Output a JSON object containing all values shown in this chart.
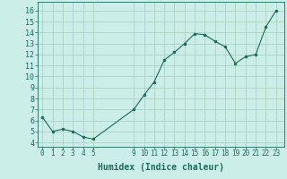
{
  "x": [
    0,
    1,
    2,
    3,
    4,
    5,
    9,
    10,
    11,
    12,
    13,
    14,
    15,
    16,
    17,
    18,
    19,
    20,
    21,
    22,
    23
  ],
  "y": [
    6.3,
    5.0,
    5.2,
    5.0,
    4.5,
    4.3,
    7.0,
    8.3,
    9.5,
    11.5,
    12.2,
    13.0,
    13.9,
    13.8,
    13.2,
    12.7,
    11.2,
    11.8,
    12.0,
    14.5,
    16.0
  ],
  "xlabel": "Humidex (Indice chaleur)",
  "xticks": [
    0,
    1,
    2,
    3,
    4,
    5,
    9,
    10,
    11,
    12,
    13,
    14,
    15,
    16,
    17,
    18,
    19,
    20,
    21,
    22,
    23
  ],
  "yticks": [
    4,
    5,
    6,
    7,
    8,
    9,
    10,
    11,
    12,
    13,
    14,
    15,
    16
  ],
  "ylim": [
    3.6,
    16.8
  ],
  "xlim": [
    -0.5,
    23.8
  ],
  "bg_color": "#cceee8",
  "grid_color": "#aaccbb",
  "line_color": "#1a6b5a",
  "marker_color": "#1a6b5a",
  "axis_label_color": "#1a6b5a",
  "tick_color": "#1a6b5a",
  "xlabel_fontsize": 7,
  "ytick_fontsize": 6,
  "xtick_fontsize": 5.5
}
